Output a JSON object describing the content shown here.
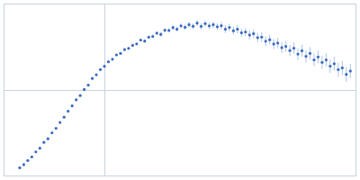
{
  "chart_data": {
    "type": "scatter",
    "x": [
      0.016,
      0.02,
      0.024,
      0.028,
      0.032,
      0.036,
      0.04,
      0.044,
      0.048,
      0.052,
      0.056,
      0.06,
      0.064,
      0.068,
      0.072,
      0.076,
      0.08,
      0.084,
      0.088,
      0.092,
      0.096,
      0.1,
      0.104,
      0.108,
      0.112,
      0.116,
      0.12,
      0.124,
      0.128,
      0.132,
      0.136,
      0.14,
      0.144,
      0.148,
      0.152,
      0.156,
      0.16,
      0.164,
      0.168,
      0.172,
      0.176,
      0.18,
      0.184,
      0.188,
      0.192,
      0.196,
      0.2,
      0.204,
      0.208,
      0.212,
      0.216,
      0.22,
      0.224,
      0.228,
      0.232,
      0.236,
      0.24,
      0.244,
      0.248,
      0.252,
      0.256,
      0.26,
      0.264,
      0.268,
      0.272,
      0.276,
      0.28,
      0.284,
      0.288,
      0.292,
      0.296,
      0.3,
      0.304,
      0.308,
      0.312,
      0.316,
      0.32,
      0.324,
      0.328,
      0.332,
      0.336,
      0.34,
      0.344
    ],
    "values": [
      0.05,
      0.068,
      0.092,
      0.113,
      0.142,
      0.163,
      0.197,
      0.218,
      0.252,
      0.278,
      0.312,
      0.343,
      0.377,
      0.408,
      0.443,
      0.468,
      0.503,
      0.528,
      0.567,
      0.588,
      0.618,
      0.637,
      0.663,
      0.678,
      0.703,
      0.712,
      0.734,
      0.741,
      0.758,
      0.767,
      0.789,
      0.783,
      0.806,
      0.81,
      0.829,
      0.822,
      0.846,
      0.845,
      0.861,
      0.852,
      0.871,
      0.863,
      0.878,
      0.869,
      0.887,
      0.868,
      0.884,
      0.871,
      0.878,
      0.866,
      0.872,
      0.852,
      0.862,
      0.843,
      0.852,
      0.831,
      0.836,
      0.818,
      0.826,
      0.803,
      0.806,
      0.782,
      0.791,
      0.766,
      0.772,
      0.745,
      0.752,
      0.728,
      0.742,
      0.708,
      0.727,
      0.695,
      0.712,
      0.674,
      0.691,
      0.66,
      0.674,
      0.638,
      0.652,
      0.618,
      0.628,
      0.59,
      0.61
    ],
    "errors": [
      0.003,
      0.003,
      0.003,
      0.003,
      0.003,
      0.003,
      0.004,
      0.004,
      0.004,
      0.004,
      0.004,
      0.004,
      0.004,
      0.005,
      0.005,
      0.005,
      0.005,
      0.005,
      0.005,
      0.006,
      0.006,
      0.006,
      0.006,
      0.007,
      0.007,
      0.007,
      0.008,
      0.008,
      0.008,
      0.009,
      0.009,
      0.01,
      0.01,
      0.011,
      0.011,
      0.012,
      0.012,
      0.013,
      0.013,
      0.014,
      0.015,
      0.015,
      0.016,
      0.016,
      0.017,
      0.018,
      0.018,
      0.019,
      0.02,
      0.02,
      0.021,
      0.022,
      0.022,
      0.023,
      0.024,
      0.024,
      0.025,
      0.026,
      0.026,
      0.027,
      0.028,
      0.028,
      0.029,
      0.03,
      0.03,
      0.031,
      0.032,
      0.032,
      0.033,
      0.034,
      0.034,
      0.035,
      0.036,
      0.036,
      0.037,
      0.038,
      0.038,
      0.039,
      0.04,
      0.04,
      0.041,
      0.042,
      0.042
    ],
    "xlim": [
      0,
      0.35
    ],
    "ylim": [
      0,
      1
    ],
    "xticks": [
      0.1
    ],
    "yticks": [
      0.5
    ],
    "grid": true,
    "tick_labels": false,
    "color": "#3a6bc0",
    "marker": "circle"
  }
}
